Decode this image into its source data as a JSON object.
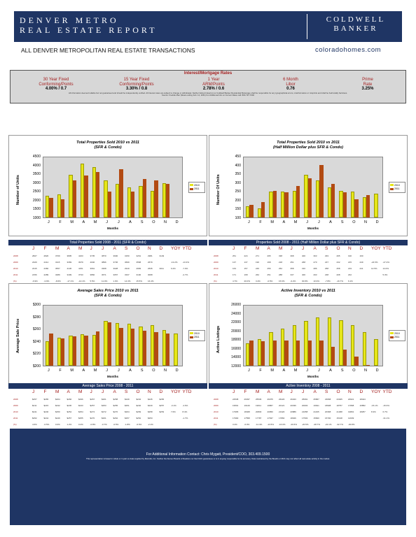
{
  "header": {
    "title_line1": "DENVER METRO",
    "title_line2": "REAL ESTATE REPORT",
    "brand_line1": "COLDWELL",
    "brand_line2": "BANKER",
    "subtitle": "ALL DENVER METROPOLITAN REAL ESTATE TRANSACTIONS",
    "website": "coloradohomes.com",
    "colors": {
      "navy": "#1f3564",
      "red": "#a41f1f",
      "yellow": "#e6e619",
      "rust": "#b24a12"
    }
  },
  "rates": {
    "title": "Interest/Mortgage Rates",
    "items": [
      {
        "label1": "30 Year Fixed",
        "label2": "Conforming/Points",
        "value": "4.00% / 0.7"
      },
      {
        "label1": "15 Year Fixed",
        "label2": "Conforming/Points",
        "value": "3.30% / 0.8"
      },
      {
        "label1": "1 Year",
        "label2": "ARM/Points",
        "value": "2.78% / 0.6"
      },
      {
        "label1": "6 Month",
        "label2": "Libor",
        "value": "0.76"
      },
      {
        "label1": "Prime",
        "label2": "Rate",
        "value": "3.25%"
      }
    ],
    "note1": "All information deemed reliable but not guaranteed and should be independently verified. All interest rates are subject to change or withdrawal. Neither listing broker(s) nor Coldwell Banker Residential Brokerage shall be responsible for any typographical errors, misinformation or misprints and shall be held totally harmless.",
    "note2": "Source: Freddie Mac (Week ending Feb. 12, 2011)   For Additional Info on Current Rates call: 800-797-7000"
  },
  "months": [
    "J",
    "F",
    "M",
    "A",
    "M",
    "J",
    "J",
    "A",
    "S",
    "O",
    "N",
    "D"
  ],
  "table_cols": [
    "J",
    "F",
    "M",
    "A",
    "M",
    "J",
    "J",
    "A",
    "S",
    "O",
    "N",
    "D",
    "YOY",
    "YTD"
  ],
  "chart_data": [
    {
      "type": "bar",
      "title": "Total Properties Sold    2010 vs 2011",
      "subtitle": "(SFR & Condo)",
      "xlabel": "Months",
      "ylabel": "Number of Units",
      "ylim": [
        1000,
        4500
      ],
      "yticks": [
        "4500",
        "4000",
        "3500",
        "3000",
        "2500",
        "2000",
        "1500",
        "1000"
      ],
      "series": [
        {
          "name": "2010",
          "color": "#e6e619",
          "values": [
            2250,
            2350,
            3500,
            4150,
            3950,
            3150,
            2950,
            2750,
            2850,
            2550,
            3000,
            null
          ]
        },
        {
          "name": "2011",
          "color": "#b24a12",
          "values": [
            2150,
            2050,
            3150,
            3450,
            3650,
            2500,
            3800,
            2500,
            3250,
            3150,
            2950,
            null
          ]
        }
      ],
      "legend": "right",
      "table": {
        "title": "Total Properties Sold   2008 - 2011  (SFR & Condo)",
        "rows": [
          {
            "year": "2008",
            "cells": [
              "2827",
              "2820",
              "3709",
              "3805",
              "4163",
              "3735",
              "3870",
              "3900",
              "3150",
              "3261",
              "2981",
              "3149",
              "",
              ""
            ]
          },
          {
            "year": "2009",
            "cells": [
              "2329",
              "2414",
              "3115",
              "3369",
              "3979",
              "4040",
              "3896",
              "3736",
              "3699",
              "3568",
              "2679",
              "",
              "-13.2%",
              "-13.3%"
            ]
          },
          {
            "year": "2010",
            "cells": [
              "2315",
              "2382",
              "3557",
              "4136",
              "4151",
              "3661",
              "3308",
              "3028",
              "2919",
              "2683",
              "2635",
              "3011",
              "6.2%",
              "-7.0%"
            ]
          },
          {
            "year": "2011",
            "cells": [
              "2156",
              "2289",
              "3489",
              "3409",
              "3733",
              "3860",
              "3671",
              "3057",
              "3337",
              "3100",
              "3068",
              "",
              "",
              "-2.7%"
            ]
          },
          {
            "year": "(%)",
            "cells": [
              "-6.9%",
              "-3.9%",
              "-8.6%",
              "-17.1%",
              "-10.1%",
              "5.5%",
              "11.0%",
              "1.0%",
              "14.3%",
              "15.5%",
              "16.4%",
              "",
              "",
              ""
            ]
          }
        ]
      }
    },
    {
      "type": "bar",
      "title": "Total Properties Sold    2010 vs 2011",
      "subtitle": "(Half Million Dollar plus SFR & Condo)",
      "xlabel": "Months",
      "ylabel": "Number Of Units",
      "ylim": [
        100,
        450
      ],
      "yticks": [
        "450",
        "400",
        "350",
        "300",
        "250",
        "200",
        "150",
        "100"
      ],
      "series": [
        {
          "name": "2010",
          "color": "#e6e619",
          "values": [
            165,
            155,
            250,
            250,
            255,
            350,
            315,
            275,
            255,
            250,
            220,
            240
          ]
        },
        {
          "name": "2011",
          "color": "#b24a12",
          "values": [
            175,
            190,
            255,
            245,
            285,
            330,
            405,
            295,
            245,
            205,
            230,
            null
          ]
        }
      ],
      "legend": "right",
      "table": {
        "title": "Properties Sold   2008 - 2011  (Half Million Dollar plus SFR & Condo)",
        "rows": [
          {
            "year": "2008",
            "cells": [
              "251",
              "224",
              "271",
              "295",
              "338",
              "368",
              "400",
              "363",
              "293",
              "295",
              "190",
              "190",
              "",
              ""
            ]
          },
          {
            "year": "2009",
            "cells": [
              "137",
              "137",
              "190",
              "168",
              "218",
              "251",
              "268",
              "270",
              "237",
              "232",
              "215",
              "249",
              "-24.5%",
              "-27.4%"
            ]
          },
          {
            "year": "2010",
            "cells": [
              "163",
              "157",
              "246",
              "256",
              "252",
              "358",
              "310",
              "286",
              "258",
              "258",
              "219",
              "241",
              "12.5%",
              "14.0%"
            ]
          },
          {
            "year": "2011",
            "cells": [
              "171",
              "168",
              "262",
              "251",
              "288",
              "337",
              "400",
              "293",
              "238",
              "208",
              "232",
              "",
              "",
              "5.3%"
            ]
          },
          {
            "year": "(%)",
            "cells": [
              "4.7%",
              "20.0%",
              "3.4%",
              "-0.5%",
              "15.6%",
              "-6.2%",
              "30.8%",
              "10.9%",
              "-7.8%",
              "-16.7%",
              "6.1%",
              "",
              "",
              ""
            ]
          }
        ]
      }
    },
    {
      "type": "bar",
      "title": "Average Sales Price    2010 vs 2011",
      "subtitle": "(SFR & Condo)",
      "xlabel": "Months",
      "ylabel": "Average Sale Price",
      "ylim": [
        200,
        300
      ],
      "yticks": [
        "$300",
        "$280",
        "$260",
        "$240",
        "$220",
        "$200"
      ],
      "series": [
        {
          "name": "2010",
          "color": "#e6e619",
          "values": [
            241,
            247,
            250,
            252,
            251,
            274,
            271,
            270,
            265,
            268,
            259,
            253
          ]
        },
        {
          "name": "2011",
          "color": "#b24a12",
          "values": [
            253,
            245,
            249,
            250,
            257,
            272,
            263,
            262,
            258,
            256,
            254,
            null
          ]
        }
      ],
      "legend": "right",
      "table": {
        "title": "Average Sales Price   2008 - 2011",
        "rows": [
          {
            "year": "2008",
            "cells": [
              "$257",
              "$265",
              "$264",
              "$266",
              "$296",
              "$267",
              "$261",
              "$258",
              "$249",
              "$232",
              "$245",
              "$265",
              "",
              ""
            ]
          },
          {
            "year": "2009",
            "cells": [
              "$211",
              "$215",
              "$232",
              "$236",
              "$243",
              "$257",
              "$253",
              "$255",
              "$251",
              "$240",
              "$240",
              "$257",
              "-3.1%",
              "-4.6%"
            ]
          },
          {
            "year": "2010",
            "cells": [
              "$241",
              "$246",
              "$250",
              "$254",
              "$254",
              "$274",
              "$272",
              "$270",
              "$264",
              "$269",
              "$258",
              "$253",
              "7.6%",
              "8.4%"
            ]
          },
          {
            "year": "2011",
            "cells": [
              "$252",
              "$244",
              "$249",
              "$257",
              "$255",
              "$270",
              "$261",
              "$262",
              "$257",
              "$252",
              "$253",
              "",
              "",
              "-1.7%"
            ]
          },
          {
            "year": "(%)",
            "cells": [
              "4.6%",
              "-0.5%",
              "0.0%",
              "1.2%",
              "0.2%",
              "-0.8%",
              "-0.7%",
              "-0.5%",
              "-1.8%",
              "-6.6%",
              "-2.1%",
              "",
              "",
              ""
            ]
          }
        ]
      }
    },
    {
      "type": "bar",
      "title": "Active Inventory    2010 vs 2011",
      "subtitle": "(SFR & Condo)",
      "xlabel": "Months",
      "ylabel": "Active Listings",
      "ylim": [
        12000,
        26000
      ],
      "yticks": [
        "26000",
        "24000",
        "22000",
        "20000",
        "18000",
        "16000",
        "14000",
        "12000"
      ],
      "series": [
        {
          "name": "2010",
          "color": "#e6e619",
          "values": [
            17200,
            18200,
            19800,
            20600,
            21400,
            22400,
            23200,
            23200,
            22600,
            21400,
            19800,
            18200
          ]
        },
        {
          "name": "2011",
          "color": "#b24a12",
          "values": [
            17900,
            17700,
            17800,
            17900,
            17800,
            17900,
            17800,
            16400,
            15800,
            14200,
            12200,
            null
          ]
        }
      ],
      "legend": "right",
      "table": {
        "title": "Active Inventory   2008 - 2011",
        "rows": [
          {
            "year": "2008",
            "cells": [
              "24538",
              "26037",
              "25536",
              "26075",
              "26220",
              "26323",
              "25691",
              "25867",
              "23668",
              "23025",
              "20621",
              "18424",
              "",
              ""
            ]
          },
          {
            "year": "2009",
            "cells": [
              "19591",
              "19129",
              "19611",
              "19867",
              "20121",
              "20336",
              "20003",
              "19621",
              "18908",
              "18757",
              "17808",
              "16852",
              "-15.1%",
              "-15.6%"
            ]
          },
          {
            "year": "2010",
            "cells": [
              "17965",
              "18468",
              "20830",
              "20950",
              "21320",
              "20889",
              "21058",
              "21195",
              "20368",
              "21368",
              "19801",
              "18257",
              "8.3%",
              "6.7%"
            ]
          },
          {
            "year": "2011",
            "cells": [
              "17990",
              "17558",
              "17787",
              "17937",
              "17860",
              "18026",
              "17503",
              "15820",
              "15700",
              "15138",
              "12639",
              "",
              "",
              "-31.1%"
            ]
          },
          {
            "year": "(%)",
            "cells": [
              "3.4%",
              "-6.0%",
              "-11.4%",
              "-13.5%",
              "-16.0%",
              "-20.6%",
              "-20.5%",
              "-28.7%",
              "-22.1%",
              "-32.7%",
              "-30.8%",
              "",
              "",
              ""
            ]
          }
        ]
      }
    }
  ],
  "footer": {
    "line1": "For Additional Information Contact: Chris Mygatt, President/COO, 303.409.1500",
    "line2": "This representation is based in whole or in part on data supplied by Metrolist, Inc. Neither the Denver Boards of Realtors nor their MLS guarantees or is in anyway responsible for its accuracy. Data maintained by the Boards or MLS may not reflect all real estate activity in the market."
  }
}
